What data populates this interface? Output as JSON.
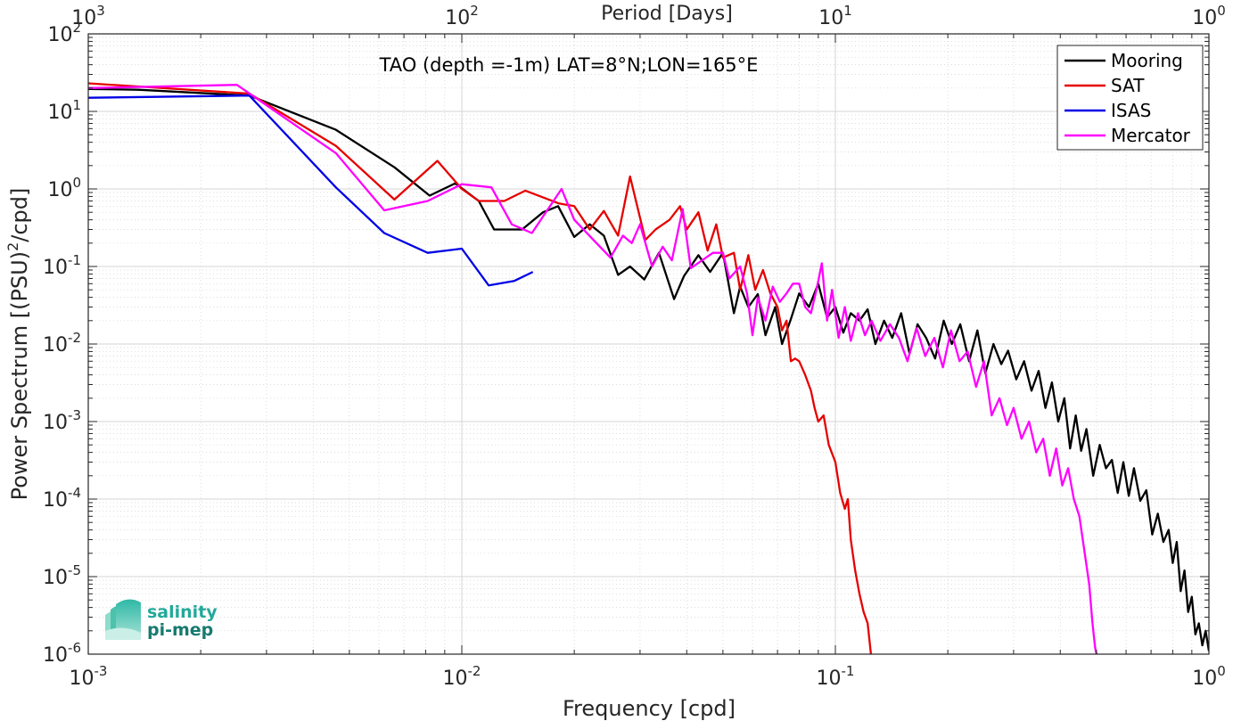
{
  "chart_data": {
    "type": "line",
    "title": "TAO (depth =-1m) LAT=8°N;LON=165°E",
    "xlabel": "Frequency [cpd]",
    "ylabel": "Power Spectrum [(PSU)²/cpd]",
    "ylabel_parts": {
      "main": "Power Spectrum [(PSU)",
      "sup": "2",
      "tail": "/cpd]"
    },
    "top_xlabel": "Period [Days]",
    "xscale": "log",
    "yscale": "log",
    "xlim": [
      0.001,
      1
    ],
    "ylim": [
      1e-06,
      100
    ],
    "grid": true,
    "legend_position": "top-right",
    "x_ticks": [
      {
        "value": 0.001,
        "base": "10",
        "exp": "-3"
      },
      {
        "value": 0.01,
        "base": "10",
        "exp": "-2"
      },
      {
        "value": 0.1,
        "base": "10",
        "exp": "-1"
      },
      {
        "value": 1,
        "base": "10",
        "exp": "0"
      }
    ],
    "top_ticks": [
      {
        "freq": 0.001,
        "base": "10",
        "exp": "3"
      },
      {
        "freq": 0.01,
        "base": "10",
        "exp": "2"
      },
      {
        "freq": 0.1,
        "base": "10",
        "exp": "1"
      },
      {
        "freq": 1,
        "base": "10",
        "exp": "0"
      }
    ],
    "y_ticks": [
      {
        "value": 100,
        "base": "10",
        "exp": "2"
      },
      {
        "value": 10,
        "base": "10",
        "exp": "1"
      },
      {
        "value": 1,
        "base": "10",
        "exp": "0"
      },
      {
        "value": 0.1,
        "base": "10",
        "exp": "-1"
      },
      {
        "value": 0.01,
        "base": "10",
        "exp": "-2"
      },
      {
        "value": 0.001,
        "base": "10",
        "exp": "-3"
      },
      {
        "value": 0.0001,
        "base": "10",
        "exp": "-4"
      },
      {
        "value": 1e-05,
        "base": "10",
        "exp": "-5"
      },
      {
        "value": 1e-06,
        "base": "10",
        "exp": "-6"
      }
    ],
    "series": [
      {
        "name": "Mooring",
        "color": "#000000",
        "points": [
          [
            0.001,
            19.5
          ],
          [
            0.00136,
            19.0
          ],
          [
            0.0027,
            16.0
          ],
          [
            0.0046,
            5.8
          ],
          [
            0.0066,
            1.9
          ],
          [
            0.0082,
            0.82
          ],
          [
            0.0096,
            1.18
          ],
          [
            0.0111,
            0.7
          ],
          [
            0.0122,
            0.3
          ],
          [
            0.0145,
            0.3
          ],
          [
            0.0165,
            0.5
          ],
          [
            0.0181,
            0.6
          ],
          [
            0.02,
            0.24
          ],
          [
            0.022,
            0.35
          ],
          [
            0.024,
            0.25
          ],
          [
            0.0262,
            0.078
          ],
          [
            0.0282,
            0.1
          ],
          [
            0.0308,
            0.068
          ],
          [
            0.0337,
            0.15
          ],
          [
            0.037,
            0.038
          ],
          [
            0.0393,
            0.075
          ],
          [
            0.043,
            0.14
          ],
          [
            0.0462,
            0.085
          ],
          [
            0.05,
            0.15
          ],
          [
            0.0535,
            0.025
          ],
          [
            0.0556,
            0.055
          ],
          [
            0.0585,
            0.03
          ],
          [
            0.062,
            0.044
          ],
          [
            0.065,
            0.013
          ],
          [
            0.069,
            0.03
          ],
          [
            0.072,
            0.01
          ],
          [
            0.076,
            0.021
          ],
          [
            0.08,
            0.045
          ],
          [
            0.085,
            0.03
          ],
          [
            0.09,
            0.06
          ],
          [
            0.095,
            0.022
          ],
          [
            0.1,
            0.03
          ],
          [
            0.105,
            0.014
          ],
          [
            0.11,
            0.025
          ],
          [
            0.116,
            0.02
          ],
          [
            0.122,
            0.028
          ],
          [
            0.128,
            0.01
          ],
          [
            0.135,
            0.02
          ],
          [
            0.142,
            0.012
          ],
          [
            0.15,
            0.025
          ],
          [
            0.158,
            0.0075
          ],
          [
            0.166,
            0.018
          ],
          [
            0.175,
            0.012
          ],
          [
            0.185,
            0.0065
          ],
          [
            0.195,
            0.02
          ],
          [
            0.205,
            0.01
          ],
          [
            0.216,
            0.018
          ],
          [
            0.228,
            0.006
          ],
          [
            0.24,
            0.015
          ],
          [
            0.252,
            0.0042
          ],
          [
            0.265,
            0.01
          ],
          [
            0.278,
            0.0055
          ],
          [
            0.29,
            0.0082
          ],
          [
            0.305,
            0.0035
          ],
          [
            0.32,
            0.006
          ],
          [
            0.335,
            0.0025
          ],
          [
            0.35,
            0.0045
          ],
          [
            0.365,
            0.0015
          ],
          [
            0.38,
            0.0032
          ],
          [
            0.395,
            0.001
          ],
          [
            0.41,
            0.002
          ],
          [
            0.425,
            0.00045
          ],
          [
            0.44,
            0.0012
          ],
          [
            0.455,
            0.00042
          ],
          [
            0.47,
            0.0008
          ],
          [
            0.49,
            0.0002
          ],
          [
            0.51,
            0.0005
          ],
          [
            0.53,
            0.00025
          ],
          [
            0.55,
            0.00032
          ],
          [
            0.57,
            0.00012
          ],
          [
            0.59,
            0.0003
          ],
          [
            0.61,
            0.00011
          ],
          [
            0.63,
            0.00025
          ],
          [
            0.655,
            9.5e-05
          ],
          [
            0.68,
            0.00013
          ],
          [
            0.705,
            3.5e-05
          ],
          [
            0.73,
            6.5e-05
          ],
          [
            0.755,
            2.8e-05
          ],
          [
            0.78,
            4e-05
          ],
          [
            0.8,
            1.5e-05
          ],
          [
            0.82,
            2.8e-05
          ],
          [
            0.84,
            6.5e-06
          ],
          [
            0.86,
            1.2e-05
          ],
          [
            0.88,
            3.5e-06
          ],
          [
            0.9,
            5.5e-06
          ],
          [
            0.92,
            1.8e-06
          ],
          [
            0.94,
            2.5e-06
          ],
          [
            0.96,
            1.3e-06
          ],
          [
            0.98,
            2e-06
          ],
          [
            1.0,
            1.1e-06
          ]
        ]
      },
      {
        "name": "SAT",
        "color": "#e60000",
        "points": [
          [
            0.001,
            23.0
          ],
          [
            0.0027,
            17.0
          ],
          [
            0.0046,
            3.6
          ],
          [
            0.0066,
            0.73
          ],
          [
            0.0086,
            2.3
          ],
          [
            0.01,
            1.0
          ],
          [
            0.0111,
            0.7
          ],
          [
            0.013,
            0.7
          ],
          [
            0.0148,
            0.95
          ],
          [
            0.0182,
            0.65
          ],
          [
            0.02,
            0.6
          ],
          [
            0.022,
            0.3
          ],
          [
            0.024,
            0.52
          ],
          [
            0.0262,
            0.25
          ],
          [
            0.0282,
            1.45
          ],
          [
            0.031,
            0.22
          ],
          [
            0.033,
            0.3
          ],
          [
            0.036,
            0.4
          ],
          [
            0.0384,
            0.6
          ],
          [
            0.04,
            0.3
          ],
          [
            0.043,
            0.5
          ],
          [
            0.0455,
            0.16
          ],
          [
            0.048,
            0.35
          ],
          [
            0.05,
            0.13
          ],
          [
            0.0535,
            0.15
          ],
          [
            0.0556,
            0.05
          ],
          [
            0.0585,
            0.14
          ],
          [
            0.061,
            0.05
          ],
          [
            0.064,
            0.09
          ],
          [
            0.067,
            0.045
          ],
          [
            0.07,
            0.03
          ],
          [
            0.072,
            0.015
          ],
          [
            0.074,
            0.02
          ],
          [
            0.076,
            0.006
          ],
          [
            0.078,
            0.0065
          ],
          [
            0.08,
            0.006
          ],
          [
            0.083,
            0.004
          ],
          [
            0.086,
            0.0025
          ],
          [
            0.088,
            0.0015
          ],
          [
            0.09,
            0.001
          ],
          [
            0.093,
            0.0012
          ],
          [
            0.096,
            0.0005
          ],
          [
            0.1,
            0.0003
          ],
          [
            0.103,
            0.00012
          ],
          [
            0.106,
            7.5e-05
          ],
          [
            0.108,
            0.0001
          ],
          [
            0.11,
            3e-05
          ],
          [
            0.113,
            1.2e-05
          ],
          [
            0.116,
            6e-06
          ],
          [
            0.119,
            3.5e-06
          ],
          [
            0.122,
            2.5e-06
          ],
          [
            0.1245,
            1e-06
          ]
        ]
      },
      {
        "name": "ISAS",
        "color": "#0000e6",
        "points": [
          [
            0.001,
            15.0
          ],
          [
            0.0027,
            16.0
          ],
          [
            0.0046,
            1.05
          ],
          [
            0.0062,
            0.27
          ],
          [
            0.0081,
            0.15
          ],
          [
            0.01,
            0.17
          ],
          [
            0.0118,
            0.057
          ],
          [
            0.0138,
            0.065
          ],
          [
            0.0155,
            0.085
          ]
        ]
      },
      {
        "name": "Mercator",
        "color": "#ff00ff",
        "points": [
          [
            0.001,
            20.0
          ],
          [
            0.0025,
            22.0
          ],
          [
            0.0046,
            2.9
          ],
          [
            0.0062,
            0.53
          ],
          [
            0.0081,
            0.7
          ],
          [
            0.01,
            1.15
          ],
          [
            0.012,
            1.05
          ],
          [
            0.0136,
            0.35
          ],
          [
            0.0154,
            0.27
          ],
          [
            0.0185,
            1.0
          ],
          [
            0.02,
            0.4
          ],
          [
            0.0225,
            0.22
          ],
          [
            0.025,
            0.13
          ],
          [
            0.027,
            0.25
          ],
          [
            0.0285,
            0.2
          ],
          [
            0.03,
            0.35
          ],
          [
            0.0323,
            0.1
          ],
          [
            0.0345,
            0.18
          ],
          [
            0.0365,
            0.12
          ],
          [
            0.039,
            0.55
          ],
          [
            0.041,
            0.095
          ],
          [
            0.044,
            0.12
          ],
          [
            0.047,
            0.15
          ],
          [
            0.05,
            0.15
          ],
          [
            0.052,
            0.07
          ],
          [
            0.0556,
            0.1
          ],
          [
            0.058,
            0.045
          ],
          [
            0.06,
            0.013
          ],
          [
            0.062,
            0.04
          ],
          [
            0.065,
            0.02
          ],
          [
            0.068,
            0.055
          ],
          [
            0.071,
            0.035
          ],
          [
            0.074,
            0.045
          ],
          [
            0.077,
            0.06
          ],
          [
            0.08,
            0.06
          ],
          [
            0.083,
            0.03
          ],
          [
            0.086,
            0.025
          ],
          [
            0.089,
            0.05
          ],
          [
            0.092,
            0.11
          ],
          [
            0.095,
            0.02
          ],
          [
            0.098,
            0.05
          ],
          [
            0.102,
            0.012
          ],
          [
            0.106,
            0.03
          ],
          [
            0.11,
            0.011
          ],
          [
            0.115,
            0.025
          ],
          [
            0.12,
            0.013
          ],
          [
            0.125,
            0.02
          ],
          [
            0.132,
            0.011
          ],
          [
            0.14,
            0.018
          ],
          [
            0.148,
            0.012
          ],
          [
            0.156,
            0.006
          ],
          [
            0.165,
            0.016
          ],
          [
            0.174,
            0.007
          ],
          [
            0.184,
            0.012
          ],
          [
            0.194,
            0.005
          ],
          [
            0.204,
            0.015
          ],
          [
            0.215,
            0.006
          ],
          [
            0.226,
            0.008
          ],
          [
            0.238,
            0.0028
          ],
          [
            0.25,
            0.006
          ],
          [
            0.262,
            0.0012
          ],
          [
            0.275,
            0.002
          ],
          [
            0.288,
            0.0009
          ],
          [
            0.3,
            0.0015
          ],
          [
            0.315,
            0.0006
          ],
          [
            0.33,
            0.001
          ],
          [
            0.345,
            0.0004
          ],
          [
            0.36,
            0.0006
          ],
          [
            0.375,
            0.0002
          ],
          [
            0.39,
            0.00045
          ],
          [
            0.405,
            0.00015
          ],
          [
            0.42,
            0.00025
          ],
          [
            0.435,
            0.0001
          ],
          [
            0.45,
            6e-05
          ],
          [
            0.465,
            2e-05
          ],
          [
            0.478,
            8e-06
          ],
          [
            0.488,
            2.5e-06
          ],
          [
            0.496,
            1.2e-06
          ],
          [
            0.5,
            1e-06
          ]
        ]
      }
    ]
  },
  "logo": {
    "line1": "salinity",
    "line2": "pi-mep"
  },
  "colors": {
    "logo_top": "#22a99a",
    "logo_bottom": "#167a6f"
  }
}
